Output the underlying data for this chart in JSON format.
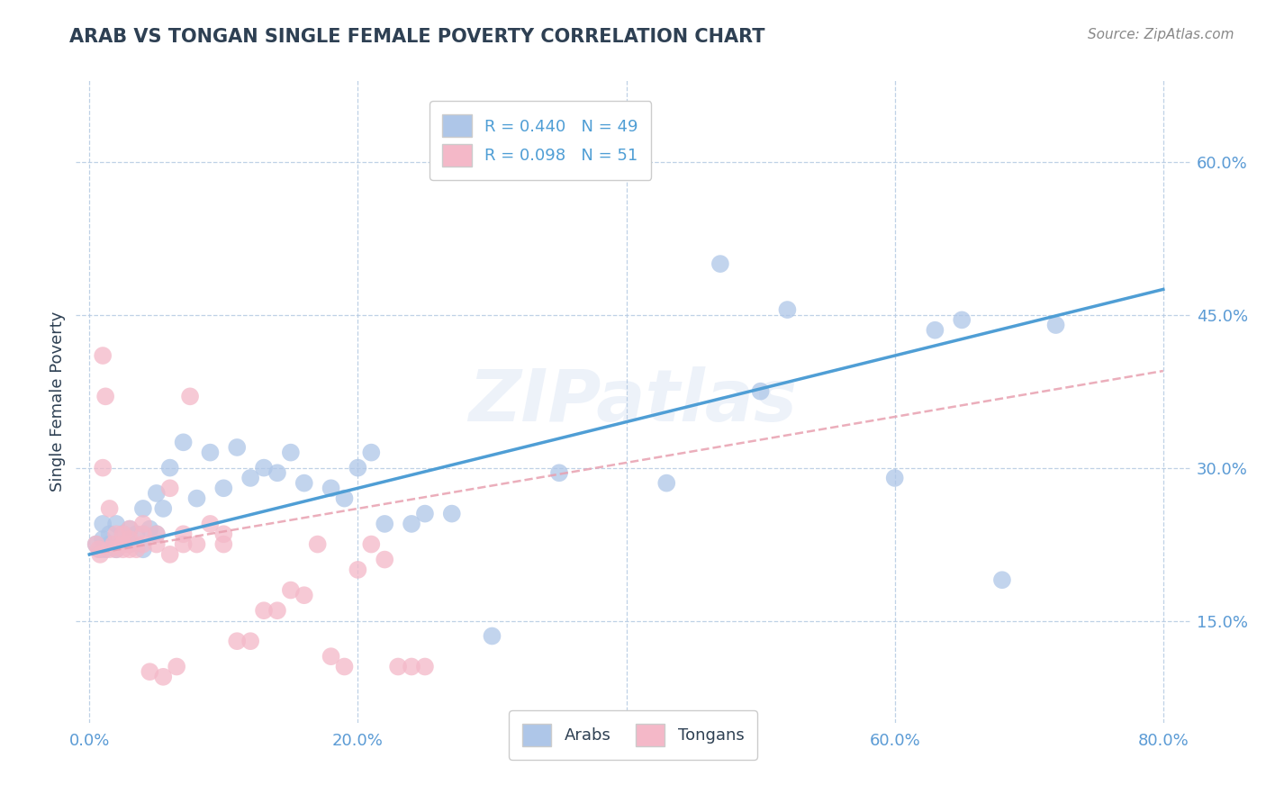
{
  "title": "ARAB VS TONGAN SINGLE FEMALE POVERTY CORRELATION CHART",
  "source": "Source: ZipAtlas.com",
  "ylabel": "Single Female Poverty",
  "xlim": [
    -0.01,
    0.82
  ],
  "ylim": [
    0.05,
    0.68
  ],
  "ytick_labels": [
    "15.0%",
    "30.0%",
    "45.0%",
    "60.0%"
  ],
  "ytick_vals": [
    0.15,
    0.3,
    0.45,
    0.6
  ],
  "xtick_labels": [
    "0.0%",
    "20.0%",
    "40.0%",
    "60.0%",
    "80.0%"
  ],
  "xtick_vals": [
    0.0,
    0.2,
    0.4,
    0.6,
    0.8
  ],
  "arab_R": 0.44,
  "arab_N": 49,
  "tongan_R": 0.098,
  "tongan_N": 51,
  "arab_color": "#aec6e8",
  "tongan_color": "#f4b8c8",
  "arab_line_color": "#4f9ed5",
  "tongan_line_color": "#e8a0b0",
  "legend_label_arab": "Arabs",
  "legend_label_tongan": "Tongans",
  "watermark": "ZIPatlas",
  "arab_scatter_x": [
    0.005,
    0.008,
    0.01,
    0.01,
    0.012,
    0.015,
    0.015,
    0.02,
    0.02,
    0.025,
    0.03,
    0.03,
    0.035,
    0.04,
    0.04,
    0.045,
    0.05,
    0.05,
    0.055,
    0.06,
    0.07,
    0.08,
    0.09,
    0.1,
    0.11,
    0.12,
    0.13,
    0.14,
    0.15,
    0.16,
    0.18,
    0.19,
    0.2,
    0.21,
    0.22,
    0.24,
    0.25,
    0.27,
    0.3,
    0.35,
    0.43,
    0.47,
    0.5,
    0.52,
    0.6,
    0.63,
    0.65,
    0.68,
    0.72
  ],
  "arab_scatter_y": [
    0.225,
    0.22,
    0.23,
    0.245,
    0.22,
    0.225,
    0.235,
    0.22,
    0.245,
    0.235,
    0.225,
    0.24,
    0.235,
    0.22,
    0.26,
    0.24,
    0.235,
    0.275,
    0.26,
    0.3,
    0.325,
    0.27,
    0.315,
    0.28,
    0.32,
    0.29,
    0.3,
    0.295,
    0.315,
    0.285,
    0.28,
    0.27,
    0.3,
    0.315,
    0.245,
    0.245,
    0.255,
    0.255,
    0.135,
    0.295,
    0.285,
    0.5,
    0.375,
    0.455,
    0.29,
    0.435,
    0.445,
    0.19,
    0.44
  ],
  "tongan_scatter_x": [
    0.005,
    0.007,
    0.008,
    0.01,
    0.01,
    0.012,
    0.015,
    0.015,
    0.018,
    0.02,
    0.02,
    0.025,
    0.025,
    0.025,
    0.03,
    0.03,
    0.03,
    0.03,
    0.035,
    0.04,
    0.04,
    0.04,
    0.045,
    0.05,
    0.05,
    0.055,
    0.06,
    0.06,
    0.065,
    0.07,
    0.07,
    0.075,
    0.08,
    0.09,
    0.1,
    0.1,
    0.11,
    0.12,
    0.13,
    0.14,
    0.15,
    0.16,
    0.17,
    0.18,
    0.19,
    0.2,
    0.21,
    0.22,
    0.23,
    0.24,
    0.25
  ],
  "tongan_scatter_y": [
    0.225,
    0.22,
    0.215,
    0.3,
    0.41,
    0.37,
    0.22,
    0.26,
    0.225,
    0.22,
    0.235,
    0.225,
    0.22,
    0.235,
    0.225,
    0.22,
    0.23,
    0.24,
    0.22,
    0.225,
    0.235,
    0.245,
    0.1,
    0.225,
    0.235,
    0.095,
    0.215,
    0.28,
    0.105,
    0.225,
    0.235,
    0.37,
    0.225,
    0.245,
    0.225,
    0.235,
    0.13,
    0.13,
    0.16,
    0.16,
    0.18,
    0.175,
    0.225,
    0.115,
    0.105,
    0.2,
    0.225,
    0.21,
    0.105,
    0.105,
    0.105
  ],
  "arab_line_x": [
    0.0,
    0.8
  ],
  "arab_line_y": [
    0.215,
    0.475
  ],
  "tongan_line_x": [
    0.0,
    0.8
  ],
  "tongan_line_y": [
    0.215,
    0.395
  ],
  "title_color": "#2e4053",
  "axis_label_color": "#2e4053",
  "tick_color": "#5b9bd5",
  "grid_color": "#b8cce4",
  "background_color": "#ffffff"
}
